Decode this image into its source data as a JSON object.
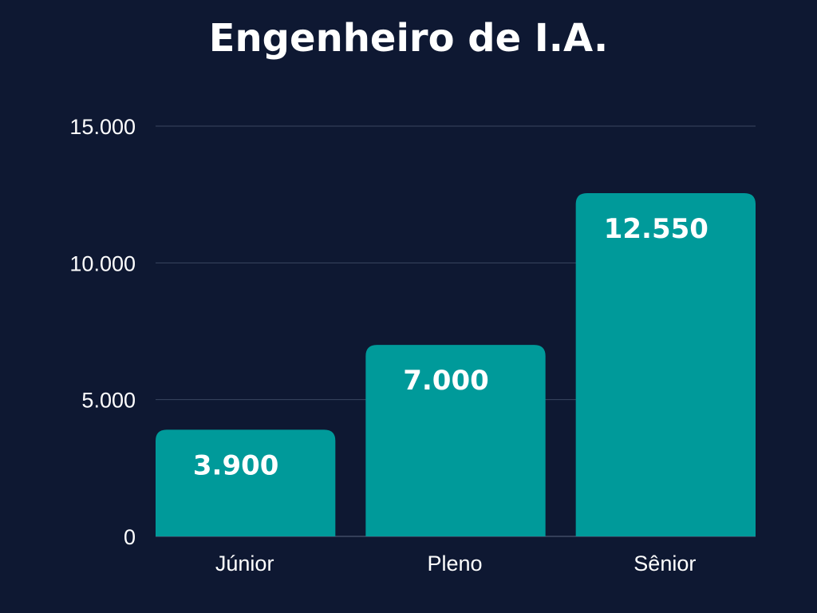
{
  "chart_data": {
    "type": "bar",
    "title": "Engenheiro de I.A.",
    "categories": [
      "Júnior",
      "Pleno",
      "Sênior"
    ],
    "values": [
      3900,
      7000,
      12550
    ],
    "value_labels": [
      "3.900",
      "7.000",
      "12.550"
    ],
    "ylim": [
      0,
      15000
    ],
    "yticks": [
      0,
      5000,
      10000,
      15000
    ],
    "ytick_labels": [
      "0",
      "5.000",
      "10.000",
      "15.000"
    ],
    "xlabel": "",
    "ylabel": "",
    "grid": true,
    "legend": "none"
  },
  "colors": {
    "background": "#0e1832",
    "bar": "#009a9a",
    "grid": "#3a4660",
    "text": "#ffffff"
  }
}
